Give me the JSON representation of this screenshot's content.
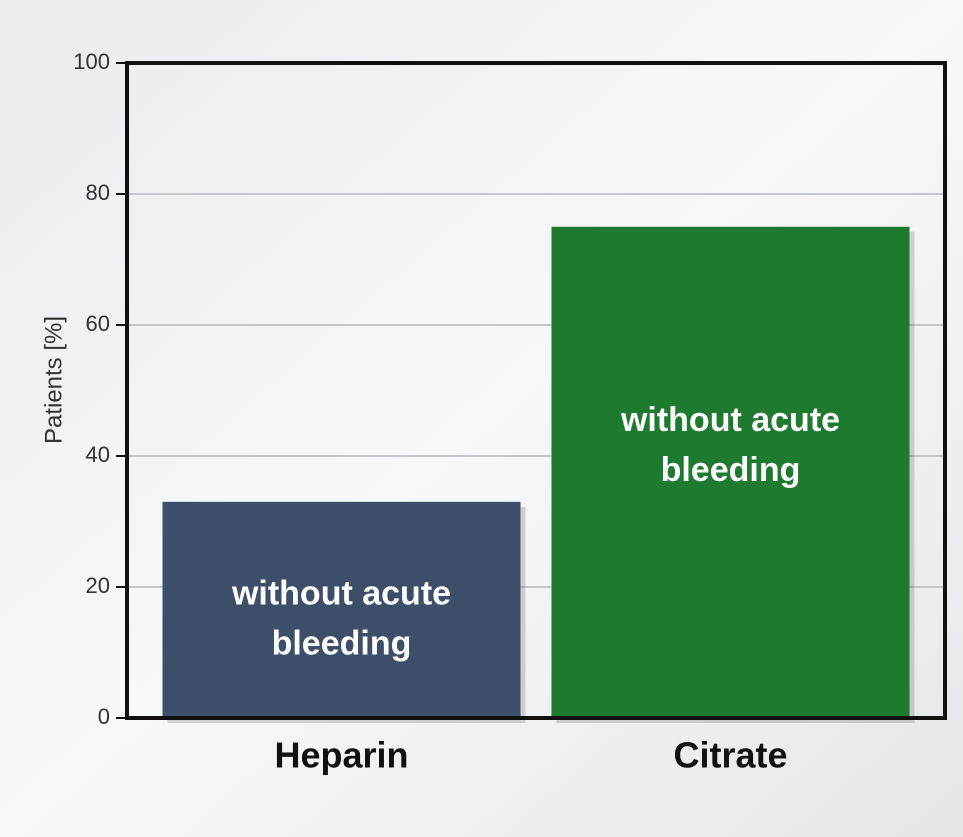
{
  "chart_data": {
    "type": "bar",
    "categories": [
      "Heparin",
      "Citrate"
    ],
    "values": [
      33,
      75
    ],
    "colors": [
      "#3d4e68",
      "#1e7a2e"
    ],
    "annotations": [
      [
        "without acute",
        "bleeding"
      ],
      [
        "without acute",
        "bleeding"
      ]
    ],
    "ylabel": "Patients [%]",
    "ylim": [
      0,
      100
    ],
    "yticks": [
      0,
      20,
      40,
      60,
      80,
      100
    ],
    "grid": true
  }
}
